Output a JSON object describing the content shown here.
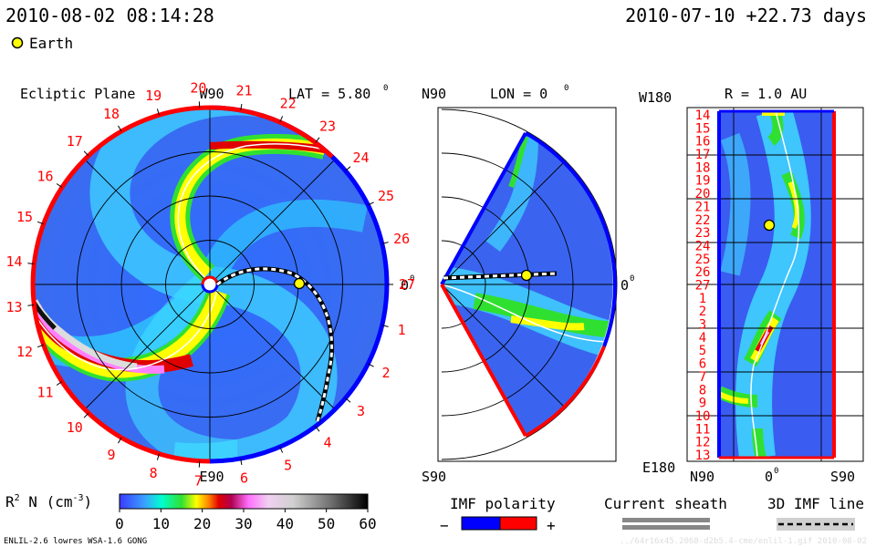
{
  "header": {
    "datetime": "2010-08-02 08:14:28",
    "forecast": "2010-07-10 +22.73 days",
    "legend_earth": "Earth"
  },
  "colors": {
    "sheath": "#888888",
    "earth": "#ffff00",
    "polarity_negative": "#0000ff",
    "polarity_positive": "#ff0000"
  },
  "chart_data": [
    {
      "type": "heatmap",
      "panel": "Ecliptic Plane",
      "title": "Ecliptic Plane",
      "lat_label": "LAT = 5.80",
      "lat_sup": "0",
      "top_label": "W90",
      "bottom_label": "E90",
      "right_label": "0",
      "right_sup": "0",
      "carrington_labels": [
        "1",
        "2",
        "3",
        "4",
        "5",
        "6",
        "7",
        "8",
        "9",
        "10",
        "11",
        "12",
        "13",
        "14",
        "15",
        "16",
        "17",
        "18",
        "19",
        "20",
        "21",
        "22",
        "23",
        "24",
        "25",
        "26",
        "27"
      ]
    },
    {
      "type": "heatmap",
      "panel": "Meridional Plane",
      "title": "LON = 0",
      "title_sup": "0",
      "top_label": "N90",
      "bottom_label": "S90",
      "right_label": "0",
      "right_sup": "0"
    },
    {
      "type": "heatmap",
      "panel": "Sphere R = 1.0 AU",
      "title": "R = 1.0 AU",
      "top_label": "W180",
      "bottom_label": "E180",
      "x_labels": [
        "N90",
        "0",
        "S90"
      ],
      "x_sup": "0",
      "y_labels": [
        "14",
        "15",
        "16",
        "17",
        "18",
        "19",
        "20",
        "21",
        "22",
        "23",
        "24",
        "25",
        "26",
        "27",
        "1",
        "2",
        "3",
        "4",
        "5",
        "6",
        "7",
        "8",
        "9",
        "10",
        "11",
        "12",
        "13"
      ]
    }
  ],
  "colorbar": {
    "label": "R",
    "label_sup": "2",
    "label_rest": " N (cm",
    "label_exp": "-3",
    "label_end": ")",
    "ticks": [
      "0",
      "10",
      "20",
      "30",
      "40",
      "50",
      "60"
    ],
    "min": 0,
    "max": 60
  },
  "legends": {
    "imf_polarity": "IMF polarity",
    "minus": "−",
    "plus": "+",
    "current_sheath": "Current sheath",
    "imf_line": "3D IMF line"
  },
  "footer": {
    "model": "ENLIL-2.6 lowres WSA-1.6 GONG",
    "path": "../64r16x45.2068-d2b5.4-cme/enlil-1.gif 2010-08-02"
  }
}
